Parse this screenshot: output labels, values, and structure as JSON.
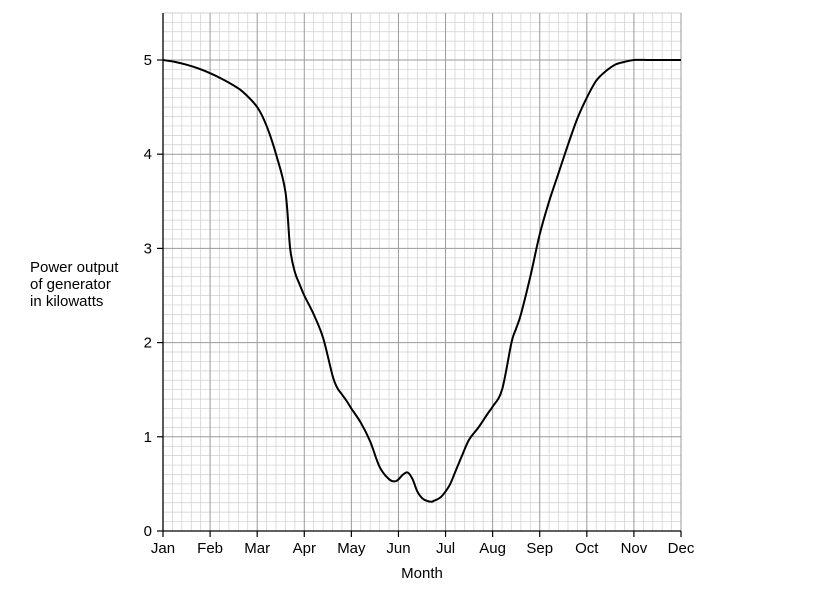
{
  "chart_data": {
    "type": "line",
    "title": "",
    "xlabel": "Month",
    "ylabel_lines": [
      "Power output",
      "of generator",
      "in kilowatts"
    ],
    "x_tick_labels": [
      "Jan",
      "Feb",
      "Mar",
      "Apr",
      "May",
      "Jun",
      "Jul",
      "Aug",
      "Sep",
      "Oct",
      "Nov",
      "Dec"
    ],
    "y_tick_labels": [
      "0",
      "1",
      "2",
      "3",
      "4",
      "5"
    ],
    "ylim": [
      0,
      5.5
    ],
    "xlim": [
      0,
      11
    ],
    "grid": true,
    "series": [
      {
        "x": [
          0,
          0.25,
          0.5,
          0.75,
          1,
          1.25,
          1.5,
          1.7,
          2,
          2.2,
          2.4,
          2.6,
          2.7,
          2.8,
          2.9,
          3,
          3.2,
          3.4,
          3.6,
          3.7,
          3.8,
          3.9,
          4,
          4.2,
          4.4,
          4.6,
          4.8,
          4.95,
          5.1,
          5.2,
          5.3,
          5.4,
          5.5,
          5.6,
          5.7,
          5.75,
          5.8,
          5.9,
          6,
          6.1,
          6.2,
          6.35,
          6.5,
          6.7,
          6.9,
          7,
          7.2,
          7.4,
          7.5,
          7.6,
          7.8,
          8,
          8.2,
          8.4,
          8.6,
          8.8,
          9,
          9.2,
          9.4,
          9.6,
          9.8,
          10,
          10.3,
          10.6,
          10.8,
          11
        ],
        "y": [
          5.0,
          4.98,
          4.95,
          4.91,
          4.86,
          4.8,
          4.73,
          4.66,
          4.5,
          4.3,
          4.0,
          3.6,
          3.0,
          2.75,
          2.62,
          2.5,
          2.3,
          2.05,
          1.65,
          1.52,
          1.45,
          1.38,
          1.3,
          1.15,
          0.95,
          0.68,
          0.55,
          0.53,
          0.6,
          0.62,
          0.55,
          0.42,
          0.35,
          0.32,
          0.31,
          0.32,
          0.33,
          0.36,
          0.42,
          0.5,
          0.62,
          0.8,
          0.97,
          1.1,
          1.25,
          1.32,
          1.5,
          2.0,
          2.15,
          2.3,
          2.7,
          3.15,
          3.5,
          3.8,
          4.1,
          4.38,
          4.6,
          4.78,
          4.88,
          4.95,
          4.98,
          5.0,
          5.0,
          5.0,
          5.0,
          5.0
        ]
      }
    ]
  }
}
